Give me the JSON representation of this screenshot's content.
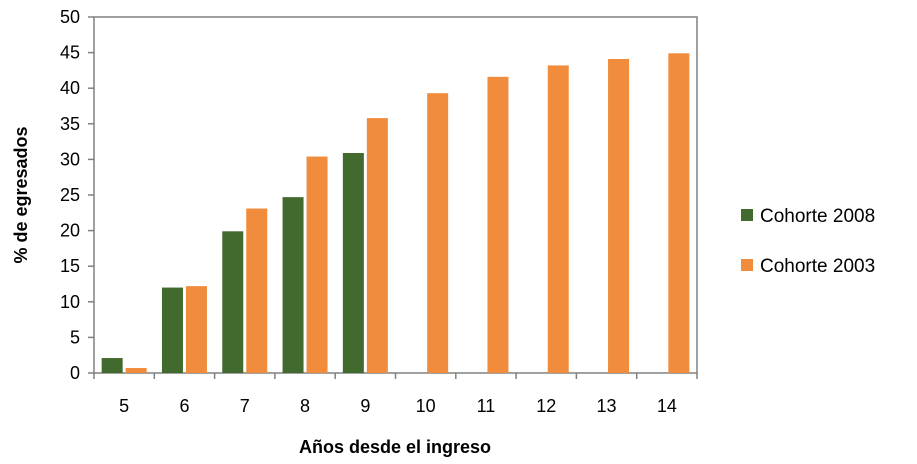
{
  "chart_data": {
    "type": "bar",
    "title": "",
    "xlabel": "Años desde el ingreso",
    "ylabel": "% de egresados",
    "categories": [
      "5",
      "6",
      "7",
      "8",
      "9",
      "10",
      "11",
      "12",
      "13",
      "14"
    ],
    "series": [
      {
        "name": "Cohorte 2008",
        "color": "#426a2f",
        "values": [
          2.1,
          12.0,
          19.9,
          24.7,
          30.9,
          null,
          null,
          null,
          null,
          null
        ]
      },
      {
        "name": "Cohorte 2003",
        "color": "#f08c3c",
        "values": [
          0.7,
          12.2,
          23.1,
          30.4,
          35.8,
          39.3,
          41.6,
          43.2,
          44.1,
          44.9
        ]
      }
    ],
    "ylim": [
      0,
      50
    ],
    "yticks": [
      0,
      5,
      10,
      15,
      20,
      25,
      30,
      35,
      40,
      45,
      50
    ],
    "grid": false,
    "legend_position": "right"
  }
}
